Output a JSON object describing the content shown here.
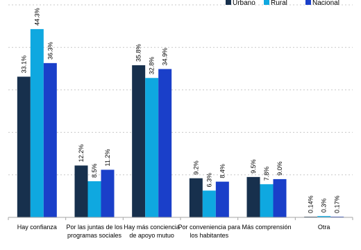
{
  "chart_data": {
    "type": "bar",
    "categories": [
      [
        "Hay confianza"
      ],
      [
        "Por las juntas de los",
        "programas sociales"
      ],
      [
        "Hay más conciencia",
        "de apoyo mutuo"
      ],
      [
        "Por conveniencia para",
        "los habitantes"
      ],
      [
        "Más comprensión"
      ],
      [
        "Otra"
      ]
    ],
    "series": [
      {
        "name": "Urbano",
        "color": "#17304d",
        "values": [
          33.1,
          12.2,
          35.8,
          9.2,
          9.5,
          0.14
        ],
        "labels": [
          "33.1%",
          "12.2%",
          "35.8%",
          "9.2%",
          "9.5%",
          "0.14%"
        ]
      },
      {
        "name": "Rural",
        "color": "#0fa8e0",
        "values": [
          44.3,
          8.5,
          32.8,
          6.3,
          7.8,
          0.3
        ],
        "labels": [
          "44.3%",
          "8.5%",
          "32.8%",
          "6.3%",
          "7.8%",
          "0.3%"
        ]
      },
      {
        "name": "Nacional",
        "color": "#1a3fc9",
        "values": [
          36.3,
          11.2,
          34.9,
          8.4,
          9.0,
          0.17
        ],
        "labels": [
          "36.3%",
          "11.2%",
          "34.9%",
          "8.4%",
          "9.0%",
          "0.17%"
        ]
      }
    ],
    "ylim": [
      0,
      50
    ],
    "yticks": [
      0,
      10,
      20,
      30,
      40,
      50
    ],
    "grid": true,
    "gridlines_dashed": true,
    "legend_position": "top-right",
    "data_labels_rotated": true
  }
}
